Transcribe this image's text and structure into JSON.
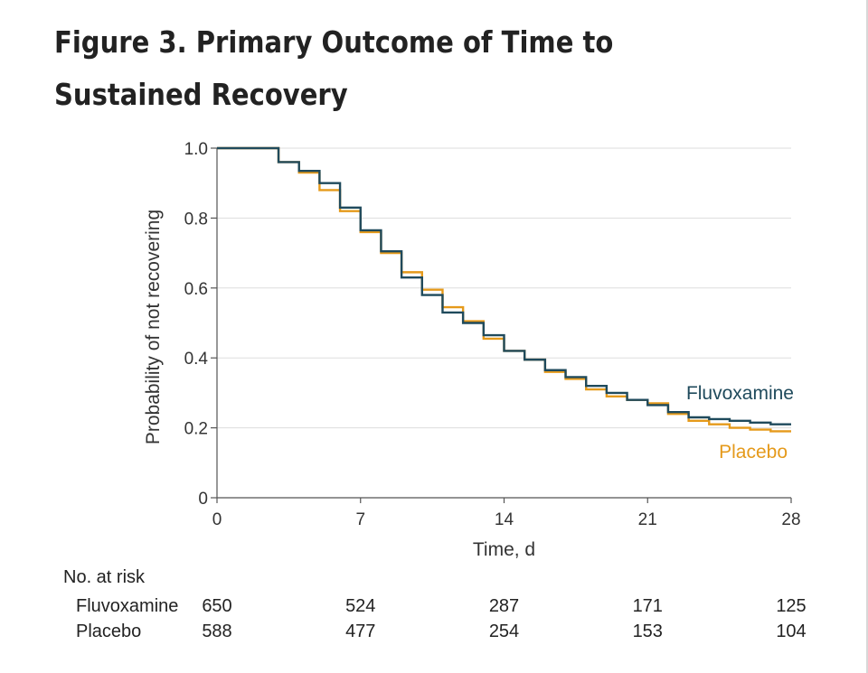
{
  "figure": {
    "title": "Figure 3.  Primary Outcome of Time to Sustained Recovery"
  },
  "colors": {
    "fluvoxamine": "#1f4a5c",
    "placebo": "#e59a1b",
    "grid": "#dddddd",
    "axis": "#555555"
  },
  "chart_data": {
    "type": "line",
    "step": "post",
    "xlabel": "Time, d",
    "ylabel": "Probability of not recovering",
    "xlim": [
      0,
      28
    ],
    "ylim": [
      0,
      1.0
    ],
    "xticks": [
      0,
      7,
      14,
      21,
      28
    ],
    "yticks": [
      0,
      0.2,
      0.4,
      0.6,
      0.8,
      1.0
    ],
    "xtick_labels": [
      "0",
      "7",
      "14",
      "21",
      "28"
    ],
    "ytick_labels": [
      "0",
      "0.2",
      "0.4",
      "0.6",
      "0.8",
      "1.0"
    ],
    "grid": "horizontal",
    "series": [
      {
        "name": "Fluvoxamine",
        "color": "#1f4a5c",
        "x": [
          0,
          3,
          4,
          5,
          6,
          7,
          8,
          9,
          10,
          11,
          12,
          13,
          14,
          15,
          16,
          17,
          18,
          19,
          20,
          21,
          22,
          23,
          24,
          25,
          26,
          27,
          28
        ],
        "y": [
          1.0,
          0.96,
          0.935,
          0.9,
          0.83,
          0.765,
          0.705,
          0.63,
          0.58,
          0.53,
          0.5,
          0.465,
          0.42,
          0.395,
          0.365,
          0.345,
          0.32,
          0.3,
          0.28,
          0.265,
          0.245,
          0.23,
          0.225,
          0.22,
          0.215,
          0.21,
          0.21
        ]
      },
      {
        "name": "Placebo",
        "color": "#e59a1b",
        "x": [
          0,
          3,
          4,
          5,
          6,
          7,
          8,
          9,
          10,
          11,
          12,
          13,
          14,
          15,
          16,
          17,
          18,
          19,
          20,
          21,
          22,
          23,
          24,
          25,
          26,
          27,
          28
        ],
        "y": [
          1.0,
          0.96,
          0.93,
          0.88,
          0.82,
          0.76,
          0.7,
          0.645,
          0.595,
          0.545,
          0.505,
          0.455,
          0.42,
          0.395,
          0.36,
          0.34,
          0.31,
          0.29,
          0.28,
          0.27,
          0.24,
          0.22,
          0.21,
          0.2,
          0.195,
          0.19,
          0.19
        ]
      }
    ],
    "at_risk": {
      "header": "No. at risk",
      "times": [
        0,
        7,
        14,
        21,
        28
      ],
      "rows": [
        {
          "group": "Fluvoxamine",
          "values": [
            "650",
            "524",
            "287",
            "171",
            "125"
          ]
        },
        {
          "group": "Placebo",
          "values": [
            "588",
            "477",
            "254",
            "153",
            "104"
          ]
        }
      ]
    }
  }
}
